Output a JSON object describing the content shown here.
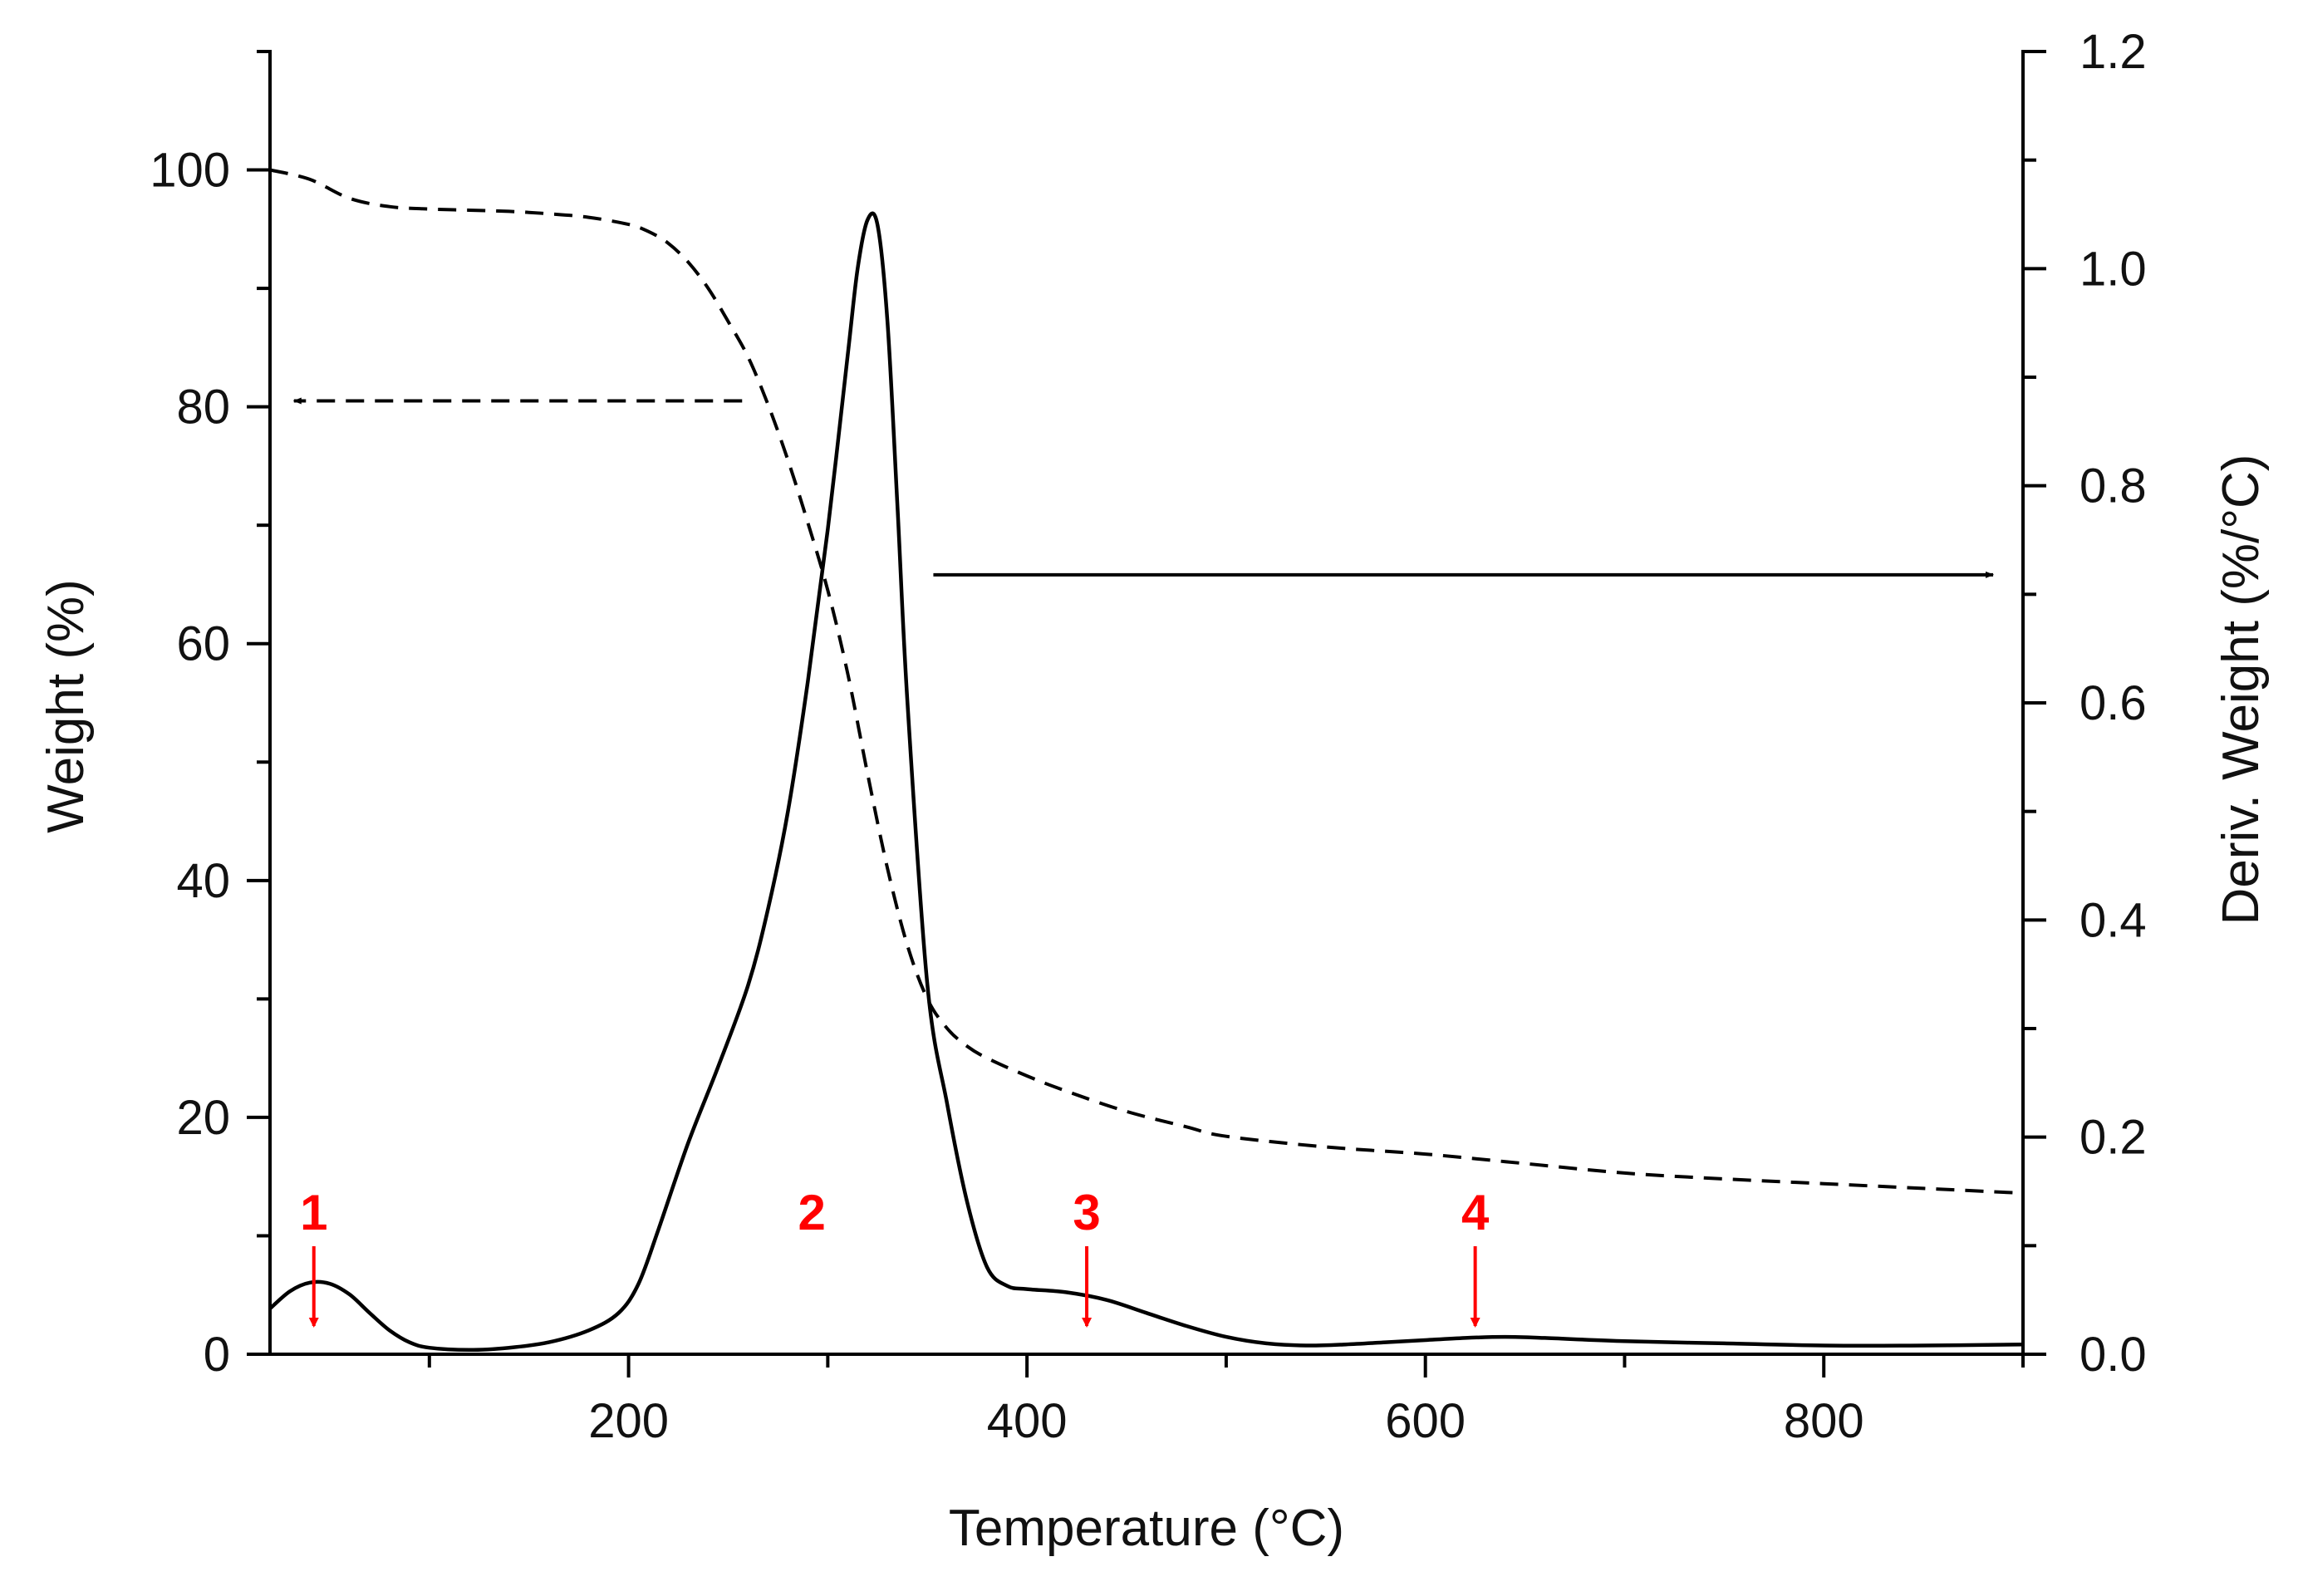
{
  "chart_data": {
    "type": "line",
    "title": "",
    "xlabel": "Temperature (°C)",
    "ylabel_left": "Weight (%)",
    "ylabel_right": "Deriv. Weight (%/°C)",
    "xlim": [
      20,
      900
    ],
    "ylim_left": [
      0,
      110
    ],
    "ylim_right": [
      0,
      1.2
    ],
    "x_ticks": [
      200,
      400,
      600,
      800
    ],
    "x_tick_labels": [
      "200",
      "400",
      "600",
      "800"
    ],
    "x_minor_ticks": [
      100,
      300,
      500,
      700,
      900
    ],
    "y_left_ticks": [
      0,
      20,
      40,
      60,
      80,
      100
    ],
    "y_left_tick_labels": [
      "0",
      "20",
      "40",
      "60",
      "80",
      "100"
    ],
    "y_left_minor_ticks": [
      10,
      30,
      50,
      70,
      90,
      110
    ],
    "y_right_ticks": [
      0.0,
      0.2,
      0.4,
      0.6,
      0.8,
      1.0,
      1.2
    ],
    "y_right_tick_labels": [
      "0.0",
      "0.2",
      "0.4",
      "0.6",
      "0.8",
      "1.0",
      "1.2"
    ],
    "y_right_minor_ticks": [
      0.1,
      0.3,
      0.5,
      0.7,
      0.9,
      1.1
    ],
    "grid": false,
    "series": [
      {
        "name": "Weight",
        "axis": "left",
        "style": "dashed",
        "color": "#000000",
        "x": [
          20,
          40,
          60,
          80,
          100,
          120,
          140,
          160,
          180,
          200,
          210,
          220,
          230,
          240,
          250,
          260,
          270,
          280,
          290,
          300,
          310,
          320,
          330,
          340,
          350,
          360,
          370,
          380,
          400,
          420,
          450,
          480,
          500,
          550,
          600,
          650,
          700,
          750,
          800,
          850,
          900
        ],
        "values": [
          100,
          99.2,
          97.6,
          96.9,
          96.7,
          96.6,
          96.5,
          96.3,
          96.0,
          95.4,
          94.8,
          93.8,
          92.2,
          90.0,
          87.2,
          84.2,
          80.2,
          75.5,
          70.2,
          64.5,
          57.5,
          49.0,
          41.0,
          34.5,
          30.0,
          27.5,
          26.0,
          25.0,
          23.5,
          22.2,
          20.5,
          19.2,
          18.4,
          17.5,
          16.9,
          16.1,
          15.3,
          14.8,
          14.4,
          14.0,
          13.6
        ]
      },
      {
        "name": "Deriv. Weight",
        "axis": "right",
        "style": "solid",
        "color": "#000000",
        "x": [
          20,
          30,
          40,
          50,
          60,
          70,
          80,
          90,
          100,
          120,
          140,
          160,
          180,
          195,
          205,
          215,
          230,
          245,
          260,
          270,
          280,
          290,
          300,
          310,
          315,
          320,
          325,
          330,
          335,
          340,
          350,
          360,
          370,
          380,
          390,
          400,
          420,
          440,
          460,
          480,
          500,
          520,
          540,
          560,
          580,
          600,
          620,
          640,
          660,
          700,
          750,
          800,
          850,
          900
        ],
        "values": [
          0.042,
          0.058,
          0.066,
          0.065,
          0.055,
          0.038,
          0.022,
          0.011,
          0.006,
          0.004,
          0.006,
          0.011,
          0.022,
          0.038,
          0.065,
          0.115,
          0.195,
          0.265,
          0.34,
          0.41,
          0.5,
          0.62,
          0.76,
          0.92,
          1.0,
          1.045,
          1.04,
          0.95,
          0.78,
          0.6,
          0.34,
          0.23,
          0.14,
          0.08,
          0.063,
          0.06,
          0.057,
          0.05,
          0.038,
          0.026,
          0.016,
          0.01,
          0.008,
          0.009,
          0.011,
          0.013,
          0.015,
          0.016,
          0.015,
          0.012,
          0.01,
          0.008,
          0.008,
          0.009
        ]
      }
    ],
    "annotations": {
      "axis_arrows": [
        {
          "name": "weight-axis-arrow",
          "direction": "left",
          "style": "dashed",
          "y_left": 80.5,
          "x_from": 257,
          "x_to": 32
        },
        {
          "name": "deriv-axis-arrow",
          "direction": "right",
          "style": "solid",
          "y_right": 0.718,
          "x_from": 353,
          "x_to": 885
        }
      ],
      "peak_markers": [
        {
          "label": "1",
          "x": 42,
          "arrow": true,
          "color": "#ff0000"
        },
        {
          "label": "2",
          "x": 292,
          "arrow": false,
          "color": "#ff0000"
        },
        {
          "label": "3",
          "x": 430,
          "arrow": true,
          "color": "#ff0000"
        },
        {
          "label": "4",
          "x": 625,
          "arrow": true,
          "color": "#ff0000"
        }
      ]
    }
  }
}
